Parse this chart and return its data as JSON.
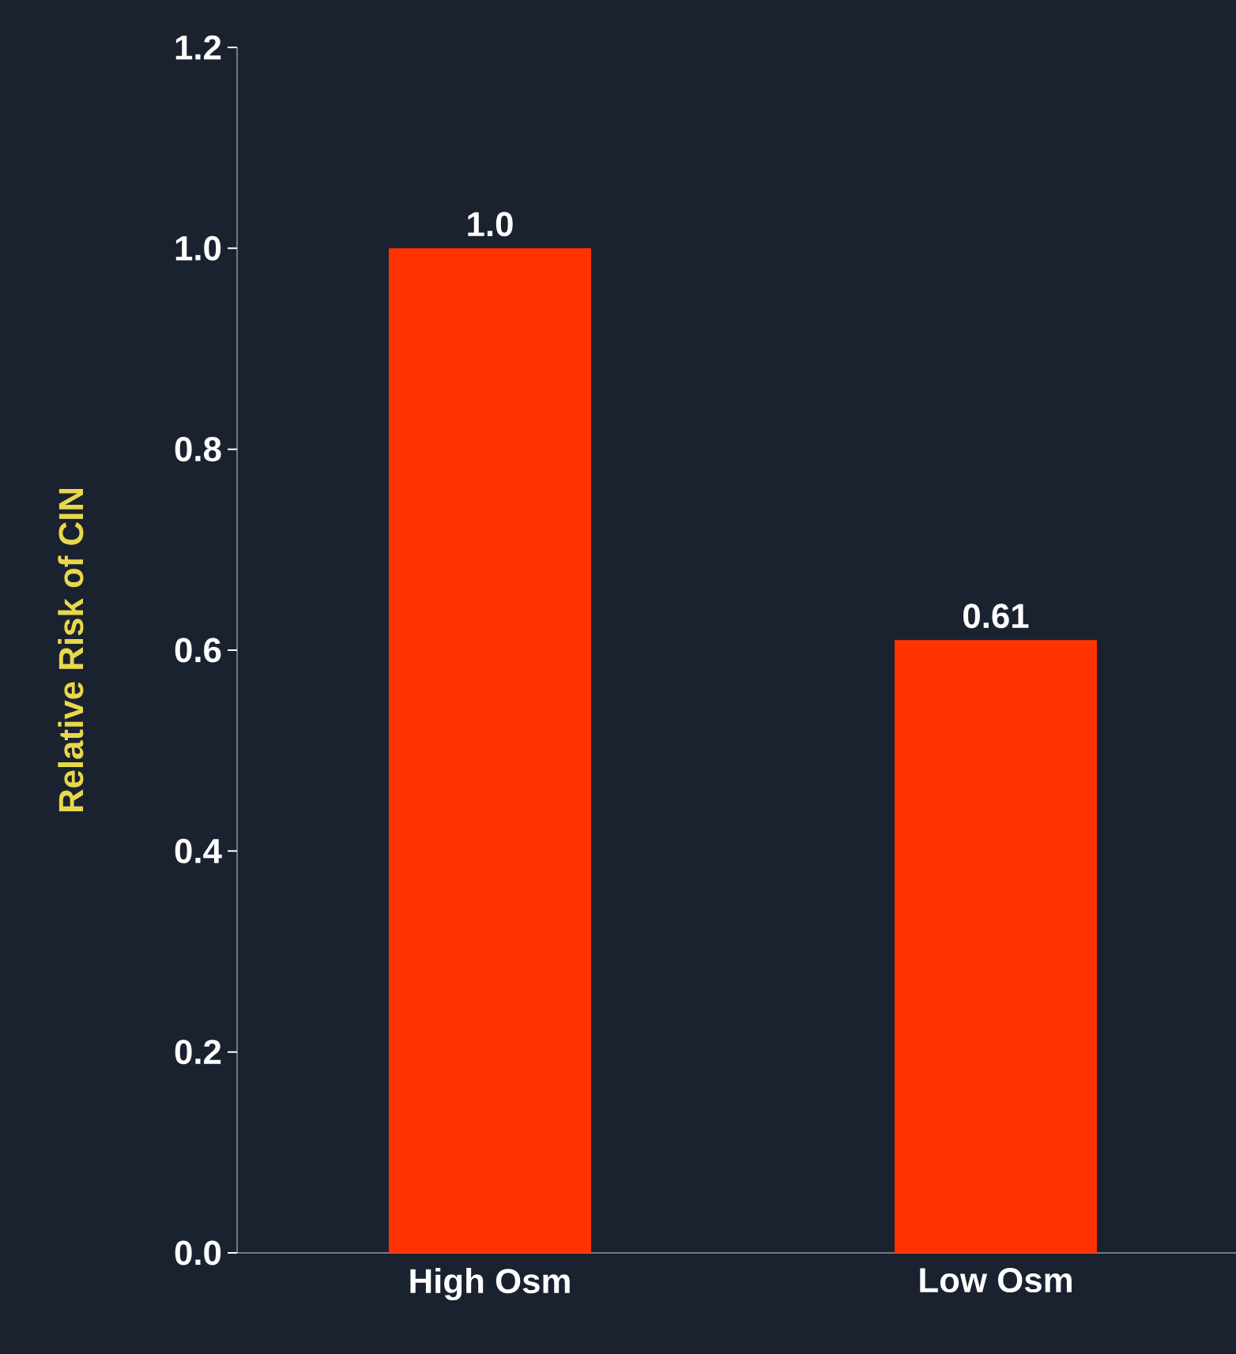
{
  "chart_data": {
    "type": "bar",
    "ylabel": "Relative Risk of CIN",
    "categories": [
      "High Osm",
      "Low Osm"
    ],
    "values": [
      1.0,
      0.61
    ],
    "color": "#ff3300",
    "value_labels": [
      "1.0",
      "0.61"
    ],
    "ylim": [
      0,
      1.2
    ],
    "yticks": [
      {
        "value": 0,
        "label": "0.0"
      },
      0.2,
      0.4,
      0.6,
      0.8,
      {
        "value": 1,
        "label": "1.0"
      },
      1.2
    ],
    "grid": false
  }
}
